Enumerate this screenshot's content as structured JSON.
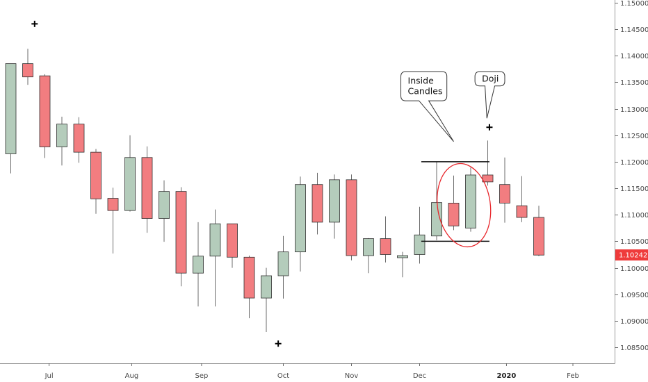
{
  "chart_data": {
    "type": "candlestick",
    "y_axis": {
      "min": 1.082,
      "max": 1.1505,
      "ticks": [
        1.15,
        1.145,
        1.14,
        1.135,
        1.13,
        1.125,
        1.12,
        1.115,
        1.11,
        1.105,
        1.1,
        1.095,
        1.09,
        1.085
      ],
      "tick_labels": [
        "1.15000",
        "1.14500",
        "1.14000",
        "1.13500",
        "1.13000",
        "1.12500",
        "1.12000",
        "1.11500",
        "1.11000",
        "1.10500",
        "1.10000",
        "1.09500",
        "1.09000",
        "1.08500"
      ],
      "position": "right"
    },
    "x_axis": {
      "labels": [
        {
          "text": "Jul",
          "at": 2.25,
          "bold": false
        },
        {
          "text": "Aug",
          "at": 7.1,
          "bold": false
        },
        {
          "text": "Sep",
          "at": 11.2,
          "bold": false
        },
        {
          "text": "Oct",
          "at": 16.0,
          "bold": false
        },
        {
          "text": "Nov",
          "at": 20.0,
          "bold": false
        },
        {
          "text": "Dec",
          "at": 24.0,
          "bold": false
        },
        {
          "text": "2020",
          "at": 29.1,
          "bold": true
        },
        {
          "text": "Feb",
          "at": 33.0,
          "bold": false
        }
      ]
    },
    "candles": [
      {
        "o": 1.1215,
        "h": 1.1385,
        "l": 1.1178,
        "c": 1.1385
      },
      {
        "o": 1.1385,
        "h": 1.1413,
        "l": 1.1345,
        "c": 1.136
      },
      {
        "o": 1.1362,
        "h": 1.1365,
        "l": 1.1207,
        "c": 1.1228
      },
      {
        "o": 1.1228,
        "h": 1.1285,
        "l": 1.1193,
        "c": 1.1271
      },
      {
        "o": 1.1271,
        "h": 1.1284,
        "l": 1.1198,
        "c": 1.1218
      },
      {
        "o": 1.1218,
        "h": 1.1224,
        "l": 1.1102,
        "c": 1.113
      },
      {
        "o": 1.1131,
        "h": 1.1151,
        "l": 1.1027,
        "c": 1.1108
      },
      {
        "o": 1.1108,
        "h": 1.125,
        "l": 1.1106,
        "c": 1.1208
      },
      {
        "o": 1.1208,
        "h": 1.1229,
        "l": 1.1066,
        "c": 1.1093
      },
      {
        "o": 1.1093,
        "h": 1.1165,
        "l": 1.1049,
        "c": 1.1144
      },
      {
        "o": 1.1144,
        "h": 1.1152,
        "l": 1.0965,
        "c": 1.099
      },
      {
        "o": 1.099,
        "h": 1.1086,
        "l": 1.0927,
        "c": 1.1022
      },
      {
        "o": 1.1022,
        "h": 1.111,
        "l": 1.0927,
        "c": 1.1083
      },
      {
        "o": 1.1083,
        "h": 1.1083,
        "l": 1.1,
        "c": 1.102
      },
      {
        "o": 1.102,
        "h": 1.1023,
        "l": 1.0905,
        "c": 1.0943
      },
      {
        "o": 1.0943,
        "h": 1.1,
        "l": 1.0879,
        "c": 1.0985
      },
      {
        "o": 1.0985,
        "h": 1.106,
        "l": 1.0942,
        "c": 1.103
      },
      {
        "o": 1.103,
        "h": 1.1172,
        "l": 1.0993,
        "c": 1.1157
      },
      {
        "o": 1.1157,
        "h": 1.1179,
        "l": 1.1063,
        "c": 1.1086
      },
      {
        "o": 1.1086,
        "h": 1.1176,
        "l": 1.1055,
        "c": 1.1166
      },
      {
        "o": 1.1166,
        "h": 1.1176,
        "l": 1.1014,
        "c": 1.1023
      },
      {
        "o": 1.1023,
        "h": 1.1056,
        "l": 1.099,
        "c": 1.1055
      },
      {
        "o": 1.1055,
        "h": 1.1097,
        "l": 1.101,
        "c": 1.1025
      },
      {
        "o": 1.1019,
        "h": 1.103,
        "l": 1.0982,
        "c": 1.1023
      },
      {
        "o": 1.1025,
        "h": 1.1115,
        "l": 1.1008,
        "c": 1.1062
      },
      {
        "o": 1.106,
        "h": 1.12,
        "l": 1.1052,
        "c": 1.1123
      },
      {
        "o": 1.1122,
        "h": 1.1174,
        "l": 1.1071,
        "c": 1.1079
      },
      {
        "o": 1.1075,
        "h": 1.1189,
        "l": 1.1068,
        "c": 1.1175
      },
      {
        "o": 1.1175,
        "h": 1.124,
        "l": 1.1155,
        "c": 1.1162
      },
      {
        "o": 1.1157,
        "h": 1.1208,
        "l": 1.1085,
        "c": 1.1122
      },
      {
        "o": 1.1117,
        "h": 1.1173,
        "l": 1.1086,
        "c": 1.1095
      },
      {
        "o": 1.1095,
        "h": 1.1117,
        "l": 1.1022,
        "c": 1.1024
      }
    ],
    "horizontal_lines": [
      {
        "y": 1.12,
        "from": 24.1,
        "to": 28.1
      },
      {
        "y": 1.105,
        "from": 24.1,
        "to": 28.1
      }
    ],
    "cross_markers": [
      {
        "x": 1.4,
        "y": 1.146
      },
      {
        "x": 15.7,
        "y": 1.0857
      },
      {
        "x": 28.1,
        "y": 1.1265
      }
    ],
    "ellipse": {
      "cx": 26.6,
      "cy": 1.1118,
      "rx": 3.1,
      "ry": 0.0079,
      "rotate": -8
    },
    "annotations": [
      {
        "text_lines": [
          "Inside",
          "Candles"
        ],
        "box_x": 22.9,
        "box_y": 1.137,
        "box_w": 2.7,
        "box_h": 0.0055,
        "pointer_to": {
          "x": 26.0,
          "y": 1.1238
        }
      },
      {
        "text_lines": [
          "Doji"
        ],
        "box_x": 27.25,
        "box_y": 1.137,
        "box_w": 1.75,
        "box_h": 0.0027,
        "pointer_to": {
          "x": 27.95,
          "y": 1.1282
        }
      }
    ],
    "last_price": {
      "value": 1.10242,
      "label": "1.10242"
    },
    "colors": {
      "bull_fill": "#b4ccbb",
      "bear_fill": "#f27d80",
      "outline": "#2f2f2f",
      "wick": "#6b6b6b",
      "last_price_bg": "#ef3b3b",
      "ellipse": "#e8262b",
      "axis": "#9a9a9a",
      "tick": "#6b6b6b"
    }
  }
}
